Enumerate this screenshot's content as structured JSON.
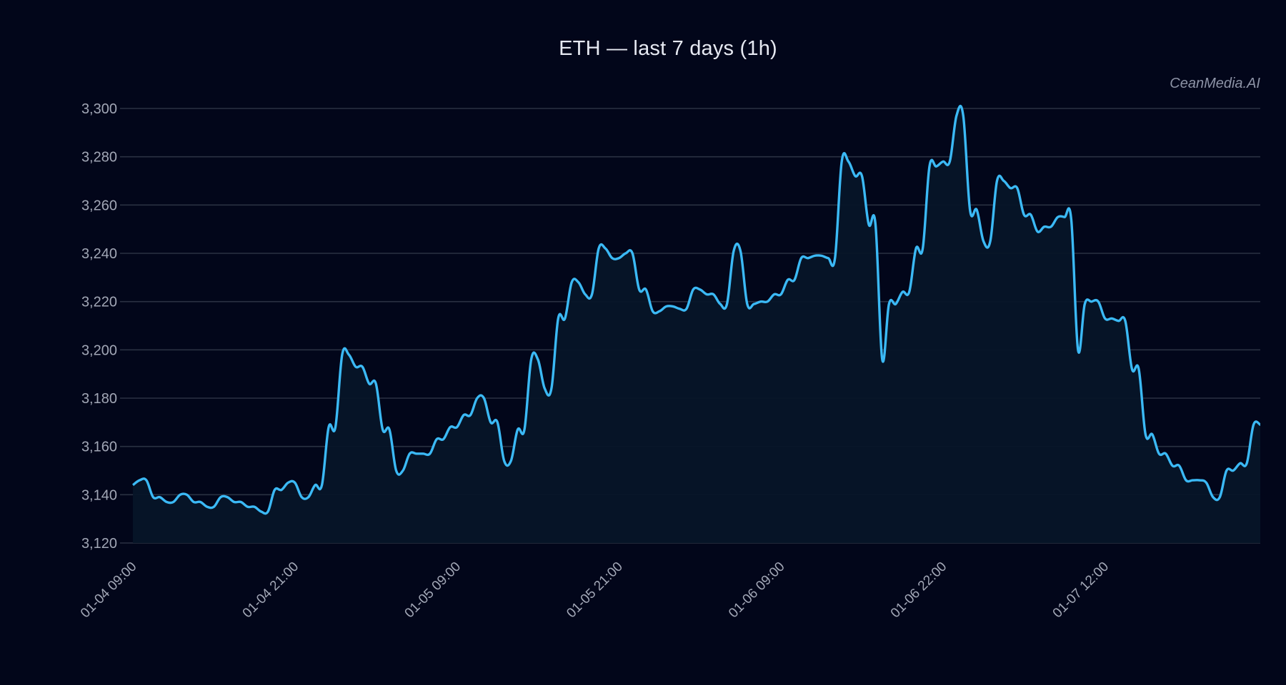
{
  "title": "ETH — last 7 days (1h)",
  "watermark": "CeanMedia.AI",
  "colors": {
    "background": "#02061a",
    "line": "#3bb9f5",
    "area_fill": "#061528",
    "grid": "#2a3142",
    "tick_text": "#a2a7b6"
  },
  "chart_data": {
    "type": "line",
    "title": "ETH — last 7 days (1h)",
    "xlabel": "",
    "ylabel": "",
    "ylim": [
      3120,
      3300
    ],
    "grid": true,
    "legend": "none",
    "area_fill": true,
    "y_ticks": [
      "3,120",
      "3,140",
      "3,160",
      "3,180",
      "3,200",
      "3,220",
      "3,240",
      "3,260",
      "3,280",
      "3,300"
    ],
    "y_tick_values": [
      3120,
      3140,
      3160,
      3180,
      3200,
      3220,
      3240,
      3260,
      3280,
      3300
    ],
    "x_ticks": [
      {
        "index": 0,
        "label": "01-04 09:00"
      },
      {
        "index": 24,
        "label": "01-04 21:00"
      },
      {
        "index": 48,
        "label": "01-05 09:00"
      },
      {
        "index": 72,
        "label": "01-05 21:00"
      },
      {
        "index": 96,
        "label": "01-06 09:00"
      },
      {
        "index": 120,
        "label": "01-06 22:00"
      },
      {
        "index": 144,
        "label": "01-07 12:00"
      }
    ],
    "series": [
      {
        "name": "ETH",
        "values": [
          3144,
          3146,
          3146,
          3139,
          3139,
          3137,
          3137,
          3140,
          3140,
          3137,
          3137,
          3135,
          3135,
          3139,
          3139,
          3137,
          3137,
          3135,
          3135,
          3133,
          3133,
          3142,
          3142,
          3145,
          3145,
          3139,
          3139,
          3144,
          3144,
          3168,
          3168,
          3198,
          3198,
          3193,
          3193,
          3186,
          3186,
          3167,
          3167,
          3150,
          3150,
          3157,
          3157,
          3157,
          3157,
          3163,
          3163,
          3168,
          3168,
          3173,
          3173,
          3180,
          3180,
          3170,
          3170,
          3154,
          3154,
          3167,
          3167,
          3196,
          3196,
          3184,
          3184,
          3213,
          3213,
          3228,
          3228,
          3223,
          3223,
          3242,
          3242,
          3238,
          3238,
          3240,
          3240,
          3225,
          3225,
          3216,
          3216,
          3218,
          3218,
          3217,
          3217,
          3225,
          3225,
          3223,
          3223,
          3219,
          3219,
          3241,
          3241,
          3219,
          3219,
          3220,
          3220,
          3223,
          3223,
          3229,
          3229,
          3238,
          3238,
          3239,
          3239,
          3238,
          3238,
          3278,
          3278,
          3272,
          3272,
          3252,
          3252,
          3196,
          3219,
          3219,
          3224,
          3224,
          3242,
          3242,
          3276,
          3276,
          3278,
          3278,
          3297,
          3297,
          3258,
          3258,
          3245,
          3245,
          3270,
          3270,
          3267,
          3267,
          3256,
          3256,
          3249,
          3251,
          3251,
          3255,
          3255,
          3254,
          3200,
          3219,
          3220,
          3220,
          3213,
          3213,
          3212,
          3212,
          3192,
          3192,
          3165,
          3165,
          3157,
          3157,
          3152,
          3152,
          3146,
          3146,
          3146,
          3145,
          3139,
          3139,
          3150,
          3150,
          3153,
          3153,
          3169,
          3169
        ]
      }
    ]
  }
}
